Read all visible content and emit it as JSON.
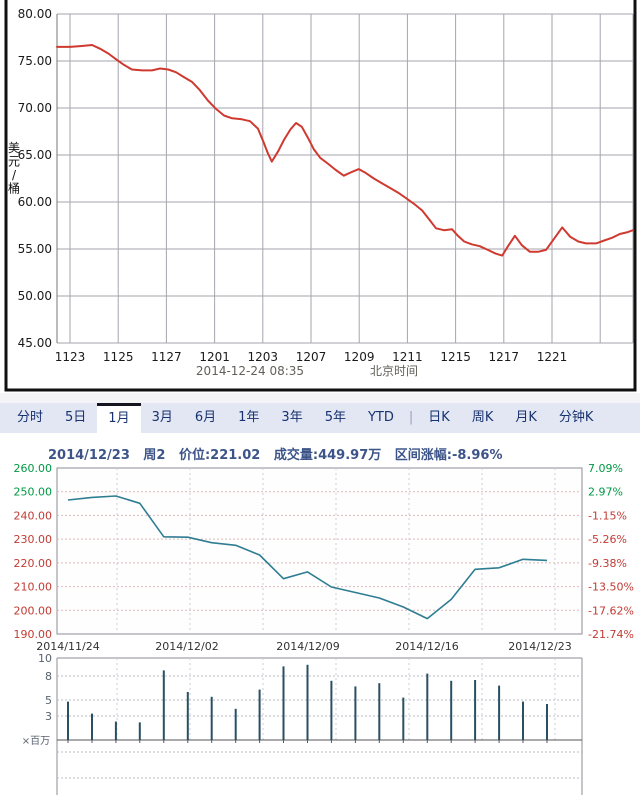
{
  "oil_chart": {
    "frame_color": "#101010",
    "line_color": "#cf3a30",
    "grid_color": "#a5a5ad",
    "unit_label": "美元/桶",
    "unit_chars": [
      "美",
      "元",
      "/",
      "桶"
    ],
    "y_ticks": [
      "80.00",
      "75.00",
      "70.00",
      "65.00",
      "60.00",
      "55.00",
      "50.00",
      "45.00"
    ],
    "x_ticks": [
      "1123",
      "1125",
      "1127",
      "1201",
      "1203",
      "1207",
      "1209",
      "1211",
      "1215",
      "1217",
      "1221"
    ],
    "footer_time": "2014-12-24 08:35",
    "footer_timezone": "北京时间"
  },
  "tabbar": {
    "bg": "#e2e7f3",
    "items": [
      "分时",
      "5日",
      "1月",
      "3月",
      "6月",
      "1年",
      "3年",
      "5年",
      "YTD",
      "|",
      "日K",
      "周K",
      "月K",
      "分钟K"
    ],
    "active": "1月"
  },
  "stock_chart": {
    "header": {
      "date": "2014/12/23",
      "weekday": "周2",
      "price_label": "价位:221.02",
      "volume_label": "成交量:449.97万",
      "change_label": "区间涨幅:-8.96%"
    },
    "up_color": "#009944",
    "down_color": "#c23b33",
    "line_color": "#2e7d92",
    "left_ticks": [
      {
        "t": "260.00",
        "c": "up"
      },
      {
        "t": "250.00",
        "c": "up"
      },
      {
        "t": "240.00",
        "c": "down"
      },
      {
        "t": "230.00",
        "c": "down"
      },
      {
        "t": "220.00",
        "c": "down"
      },
      {
        "t": "210.00",
        "c": "down"
      },
      {
        "t": "200.00",
        "c": "down"
      },
      {
        "t": "190.00",
        "c": "down"
      }
    ],
    "right_ticks": [
      {
        "t": "7.09%",
        "c": "up"
      },
      {
        "t": "2.97%",
        "c": "up"
      },
      {
        "t": "-1.15%",
        "c": "down"
      },
      {
        "t": "-5.26%",
        "c": "down"
      },
      {
        "t": "-9.38%",
        "c": "down"
      },
      {
        "t": "-13.50%",
        "c": "down"
      },
      {
        "t": "-17.62%",
        "c": "down"
      },
      {
        "t": "-21.74%",
        "c": "down"
      }
    ],
    "x_labels": [
      "2014/11/24",
      "2014/12/02",
      "2014/12/09",
      "2014/12/16",
      "2014/12/23"
    ]
  },
  "volume_chart": {
    "y_ticks": [
      "10",
      "8",
      "5",
      "3"
    ],
    "unit_label": "×百万",
    "bar_color": "#2a4f63"
  },
  "chart_data": [
    {
      "type": "line",
      "name": "crude-oil-price",
      "ylabel": "美元/桶",
      "ylim": [
        45,
        80
      ],
      "x_tick_labels": [
        "1123",
        "1125",
        "1127",
        "1201",
        "1203",
        "1207",
        "1209",
        "1211",
        "1215",
        "1217",
        "1221"
      ],
      "footer": "2014-12-24 08:35 北京时间",
      "points": [
        [
          0,
          76.5
        ],
        [
          0.023,
          76.5
        ],
        [
          0.043,
          76.6
        ],
        [
          0.061,
          76.7
        ],
        [
          0.075,
          76.3
        ],
        [
          0.089,
          75.8
        ],
        [
          0.102,
          75.2
        ],
        [
          0.116,
          74.6
        ],
        [
          0.13,
          74.1
        ],
        [
          0.148,
          74.0
        ],
        [
          0.165,
          74.0
        ],
        [
          0.179,
          74.2
        ],
        [
          0.193,
          74.1
        ],
        [
          0.207,
          73.8
        ],
        [
          0.22,
          73.3
        ],
        [
          0.234,
          72.8
        ],
        [
          0.248,
          71.9
        ],
        [
          0.262,
          70.8
        ],
        [
          0.276,
          69.9
        ],
        [
          0.29,
          69.2
        ],
        [
          0.304,
          68.9
        ],
        [
          0.321,
          68.8
        ],
        [
          0.335,
          68.6
        ],
        [
          0.349,
          67.8
        ],
        [
          0.359,
          66.3
        ],
        [
          0.366,
          65.2
        ],
        [
          0.373,
          64.3
        ],
        [
          0.384,
          65.4
        ],
        [
          0.394,
          66.6
        ],
        [
          0.405,
          67.7
        ],
        [
          0.415,
          68.4
        ],
        [
          0.425,
          68.0
        ],
        [
          0.436,
          66.8
        ],
        [
          0.446,
          65.6
        ],
        [
          0.457,
          64.7
        ],
        [
          0.47,
          64.1
        ],
        [
          0.484,
          63.4
        ],
        [
          0.498,
          62.8
        ],
        [
          0.512,
          63.2
        ],
        [
          0.524,
          63.5
        ],
        [
          0.536,
          63.1
        ],
        [
          0.55,
          62.5
        ],
        [
          0.564,
          62.0
        ],
        [
          0.578,
          61.5
        ],
        [
          0.592,
          61.0
        ],
        [
          0.606,
          60.4
        ],
        [
          0.62,
          59.8
        ],
        [
          0.634,
          59.1
        ],
        [
          0.648,
          58.0
        ],
        [
          0.658,
          57.2
        ],
        [
          0.672,
          57.0
        ],
        [
          0.686,
          57.1
        ],
        [
          0.696,
          56.4
        ],
        [
          0.707,
          55.8
        ],
        [
          0.72,
          55.5
        ],
        [
          0.734,
          55.3
        ],
        [
          0.748,
          54.9
        ],
        [
          0.762,
          54.5
        ],
        [
          0.773,
          54.3
        ],
        [
          0.783,
          55.3
        ],
        [
          0.795,
          56.4
        ],
        [
          0.807,
          55.4
        ],
        [
          0.821,
          54.7
        ],
        [
          0.835,
          54.7
        ],
        [
          0.849,
          54.9
        ],
        [
          0.863,
          56.1
        ],
        [
          0.877,
          57.3
        ],
        [
          0.891,
          56.3
        ],
        [
          0.905,
          55.8
        ],
        [
          0.918,
          55.6
        ],
        [
          0.936,
          55.6
        ],
        [
          0.95,
          55.9
        ],
        [
          0.964,
          56.2
        ],
        [
          0.977,
          56.6
        ],
        [
          0.991,
          56.8
        ],
        [
          1,
          57.0
        ]
      ]
    },
    {
      "type": "line",
      "name": "stock-price",
      "ylim": [
        190,
        260
      ],
      "right_axis_percent": [
        "7.09%",
        "2.97%",
        "-1.15%",
        "-5.26%",
        "-9.38%",
        "-13.50%",
        "-17.62%",
        "-21.74%"
      ],
      "x_axis_labels": [
        "2014/11/24",
        "2014/12/02",
        "2014/12/09",
        "2014/12/16",
        "2014/12/23"
      ],
      "last_price": 221.02,
      "range_change": "-8.96%",
      "values": [
        246.5,
        247.6,
        248.2,
        245.1,
        231.0,
        230.8,
        228.5,
        227.4,
        223.3,
        213.3,
        216.2,
        209.8,
        207.5,
        205.2,
        201.4,
        196.5,
        204.6,
        217.3,
        217.9,
        221.5,
        221.02
      ]
    },
    {
      "type": "bar",
      "name": "volume-millions",
      "ylim": [
        0,
        10
      ],
      "unit": "×百万",
      "x_axis_labels": [
        "2014/11/24",
        "2014/12/02",
        "2014/12/09",
        "2014/12/16",
        "2014/12/23"
      ],
      "values": [
        4.8,
        3.3,
        2.3,
        2.2,
        8.7,
        6.0,
        5.4,
        3.9,
        6.3,
        9.2,
        9.4,
        7.4,
        6.7,
        7.1,
        5.3,
        8.3,
        7.4,
        7.5,
        6.8,
        4.8,
        4.5
      ]
    }
  ]
}
